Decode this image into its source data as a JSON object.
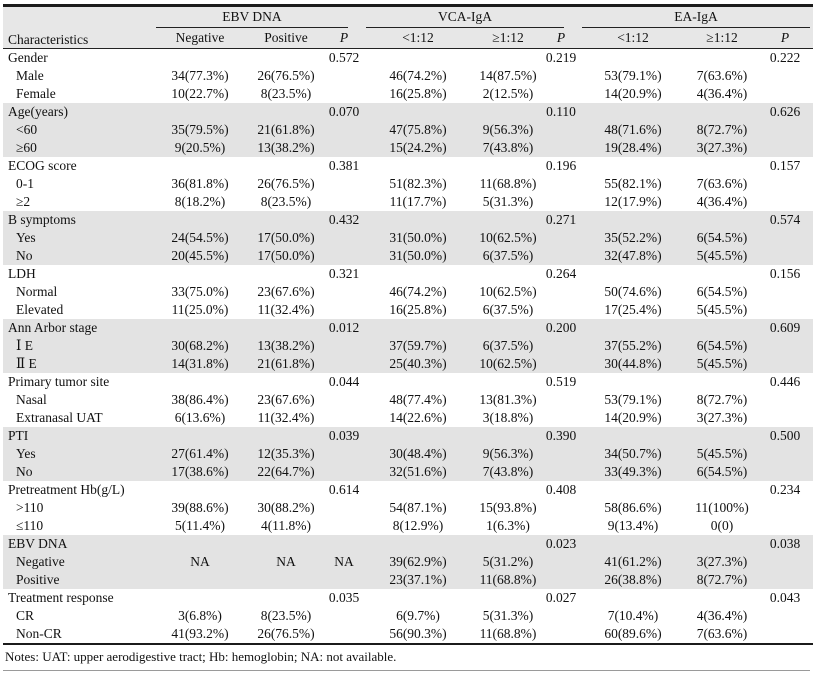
{
  "table": {
    "corner_header": "Characteristics",
    "header_groups": [
      {
        "label": "EBV DNA"
      },
      {
        "label": "VCA-IgA"
      },
      {
        "label": "EA-IgA"
      }
    ],
    "subheaders": [
      "Negative",
      "Positive",
      "P",
      "<1:12",
      "≥1:12",
      "P",
      "<1:12",
      "≥1:12",
      "P"
    ],
    "rows": [
      {
        "label": "Gender",
        "indent": false,
        "shaded": false,
        "cells": [
          "",
          "",
          "0.572",
          "",
          "",
          "0.219",
          "",
          "",
          "0.222"
        ]
      },
      {
        "label": "Male",
        "indent": true,
        "shaded": false,
        "cells": [
          "34(77.3%)",
          "26(76.5%)",
          "",
          "46(74.2%)",
          "14(87.5%)",
          "",
          "53(79.1%)",
          "7(63.6%)",
          ""
        ]
      },
      {
        "label": "Female",
        "indent": true,
        "shaded": false,
        "cells": [
          "10(22.7%)",
          "8(23.5%)",
          "",
          "16(25.8%)",
          "2(12.5%)",
          "",
          "14(20.9%)",
          "4(36.4%)",
          ""
        ]
      },
      {
        "label": "Age(years)",
        "indent": false,
        "shaded": true,
        "cells": [
          "",
          "",
          "0.070",
          "",
          "",
          "0.110",
          "",
          "",
          "0.626"
        ]
      },
      {
        "label": "<60",
        "indent": true,
        "shaded": true,
        "cells": [
          "35(79.5%)",
          "21(61.8%)",
          "",
          "47(75.8%)",
          "9(56.3%)",
          "",
          "48(71.6%)",
          "8(72.7%)",
          ""
        ]
      },
      {
        "label": "≥60",
        "indent": true,
        "shaded": true,
        "cells": [
          "9(20.5%)",
          "13(38.2%)",
          "",
          "15(24.2%)",
          "7(43.8%)",
          "",
          "19(28.4%)",
          "3(27.3%)",
          ""
        ]
      },
      {
        "label": "ECOG score",
        "indent": false,
        "shaded": false,
        "cells": [
          "",
          "",
          "0.381",
          "",
          "",
          "0.196",
          "",
          "",
          "0.157"
        ]
      },
      {
        "label": "0-1",
        "indent": true,
        "shaded": false,
        "cells": [
          "36(81.8%)",
          "26(76.5%)",
          "",
          "51(82.3%)",
          "11(68.8%)",
          "",
          "55(82.1%)",
          "7(63.6%)",
          ""
        ]
      },
      {
        "label": "≥2",
        "indent": true,
        "shaded": false,
        "cells": [
          "8(18.2%)",
          "8(23.5%)",
          "",
          "11(17.7%)",
          "5(31.3%)",
          "",
          "12(17.9%)",
          "4(36.4%)",
          ""
        ]
      },
      {
        "label": "B symptoms",
        "indent": false,
        "shaded": true,
        "cells": [
          "",
          "",
          "0.432",
          "",
          "",
          "0.271",
          "",
          "",
          "0.574"
        ]
      },
      {
        "label": "Yes",
        "indent": true,
        "shaded": true,
        "cells": [
          "24(54.5%)",
          "17(50.0%)",
          "",
          "31(50.0%)",
          "10(62.5%)",
          "",
          "35(52.2%)",
          "6(54.5%)",
          ""
        ]
      },
      {
        "label": "No",
        "indent": true,
        "shaded": true,
        "cells": [
          "20(45.5%)",
          "17(50.0%)",
          "",
          "31(50.0%)",
          "6(37.5%)",
          "",
          "32(47.8%)",
          "5(45.5%)",
          ""
        ]
      },
      {
        "label": "LDH",
        "indent": false,
        "shaded": false,
        "cells": [
          "",
          "",
          "0.321",
          "",
          "",
          "0.264",
          "",
          "",
          "0.156"
        ]
      },
      {
        "label": "Normal",
        "indent": true,
        "shaded": false,
        "cells": [
          "33(75.0%)",
          "23(67.6%)",
          "",
          "46(74.2%)",
          "10(62.5%)",
          "",
          "50(74.6%)",
          "6(54.5%)",
          ""
        ]
      },
      {
        "label": "Elevated",
        "indent": true,
        "shaded": false,
        "cells": [
          "11(25.0%)",
          "11(32.4%)",
          "",
          "16(25.8%)",
          "6(37.5%)",
          "",
          "17(25.4%)",
          "5(45.5%)",
          ""
        ]
      },
      {
        "label": "Ann Arbor stage",
        "indent": false,
        "shaded": true,
        "cells": [
          "",
          "",
          "0.012",
          "",
          "",
          "0.200",
          "",
          "",
          "0.609"
        ]
      },
      {
        "label": "Ⅰ E",
        "indent": true,
        "shaded": true,
        "cells": [
          "30(68.2%)",
          "13(38.2%)",
          "",
          "37(59.7%)",
          "6(37.5%)",
          "",
          "37(55.2%)",
          "6(54.5%)",
          ""
        ]
      },
      {
        "label": "Ⅱ E",
        "indent": true,
        "shaded": true,
        "cells": [
          "14(31.8%)",
          "21(61.8%)",
          "",
          "25(40.3%)",
          "10(62.5%)",
          "",
          "30(44.8%)",
          "5(45.5%)",
          ""
        ]
      },
      {
        "label": "Primary tumor site",
        "indent": false,
        "shaded": false,
        "cells": [
          "",
          "",
          "0.044",
          "",
          "",
          "0.519",
          "",
          "",
          "0.446"
        ]
      },
      {
        "label": "Nasal",
        "indent": true,
        "shaded": false,
        "cells": [
          "38(86.4%)",
          "23(67.6%)",
          "",
          "48(77.4%)",
          "13(81.3%)",
          "",
          "53(79.1%)",
          "8(72.7%)",
          ""
        ]
      },
      {
        "label": "Extranasal UAT",
        "indent": true,
        "shaded": false,
        "cells": [
          "6(13.6%)",
          "11(32.4%)",
          "",
          "14(22.6%)",
          "3(18.8%)",
          "",
          "14(20.9%)",
          "3(27.3%)",
          ""
        ]
      },
      {
        "label": "PTI",
        "indent": false,
        "shaded": true,
        "cells": [
          "",
          "",
          "0.039",
          "",
          "",
          "0.390",
          "",
          "",
          "0.500"
        ]
      },
      {
        "label": "Yes",
        "indent": true,
        "shaded": true,
        "cells": [
          "27(61.4%)",
          "12(35.3%)",
          "",
          "30(48.4%)",
          "9(56.3%)",
          "",
          "34(50.7%)",
          "5(45.5%)",
          ""
        ]
      },
      {
        "label": "No",
        "indent": true,
        "shaded": true,
        "cells": [
          "17(38.6%)",
          "22(64.7%)",
          "",
          "32(51.6%)",
          "7(43.8%)",
          "",
          "33(49.3%)",
          "6(54.5%)",
          ""
        ]
      },
      {
        "label": "Pretreatment Hb(g/L)",
        "indent": false,
        "shaded": false,
        "cells": [
          "",
          "",
          "0.614",
          "",
          "",
          "0.408",
          "",
          "",
          "0.234"
        ]
      },
      {
        "label": ">110",
        "indent": true,
        "shaded": false,
        "cells": [
          "39(88.6%)",
          "30(88.2%)",
          "",
          "54(87.1%)",
          "15(93.8%)",
          "",
          "58(86.6%)",
          "11(100%)",
          ""
        ]
      },
      {
        "label": "≤110",
        "indent": true,
        "shaded": false,
        "cells": [
          "5(11.4%)",
          "4(11.8%)",
          "",
          "8(12.9%)",
          "1(6.3%)",
          "",
          "9(13.4%)",
          "0(0)",
          ""
        ]
      },
      {
        "label": "EBV DNA",
        "indent": false,
        "shaded": true,
        "cells": [
          "",
          "",
          "",
          "",
          "",
          "0.023",
          "",
          "",
          "0.038"
        ]
      },
      {
        "label": "Negative",
        "indent": true,
        "shaded": true,
        "cells": [
          "NA",
          "NA",
          "NA",
          "39(62.9%)",
          "5(31.2%)",
          "",
          "41(61.2%)",
          "3(27.3%)",
          ""
        ]
      },
      {
        "label": "Positive",
        "indent": true,
        "shaded": true,
        "cells": [
          "",
          "",
          "",
          "23(37.1%)",
          "11(68.8%)",
          "",
          "26(38.8%)",
          "8(72.7%)",
          ""
        ]
      },
      {
        "label": "Treatment response",
        "indent": false,
        "shaded": false,
        "cells": [
          "",
          "",
          "0.035",
          "",
          "",
          "0.027",
          "",
          "",
          "0.043"
        ]
      },
      {
        "label": "CR",
        "indent": true,
        "shaded": false,
        "cells": [
          "3(6.8%)",
          "8(23.5%)",
          "",
          "6(9.7%)",
          "5(31.3%)",
          "",
          "7(10.4%)",
          "4(36.4%)",
          ""
        ]
      },
      {
        "label": "Non-CR",
        "indent": true,
        "shaded": false,
        "cells": [
          "41(93.2%)",
          "26(76.5%)",
          "",
          "56(90.3%)",
          "11(68.8%)",
          "",
          "60(89.6%)",
          "7(63.6%)",
          ""
        ]
      }
    ],
    "notes": "Notes: UAT: upper aerodigestive tract; Hb: hemoglobin; NA: not available."
  }
}
